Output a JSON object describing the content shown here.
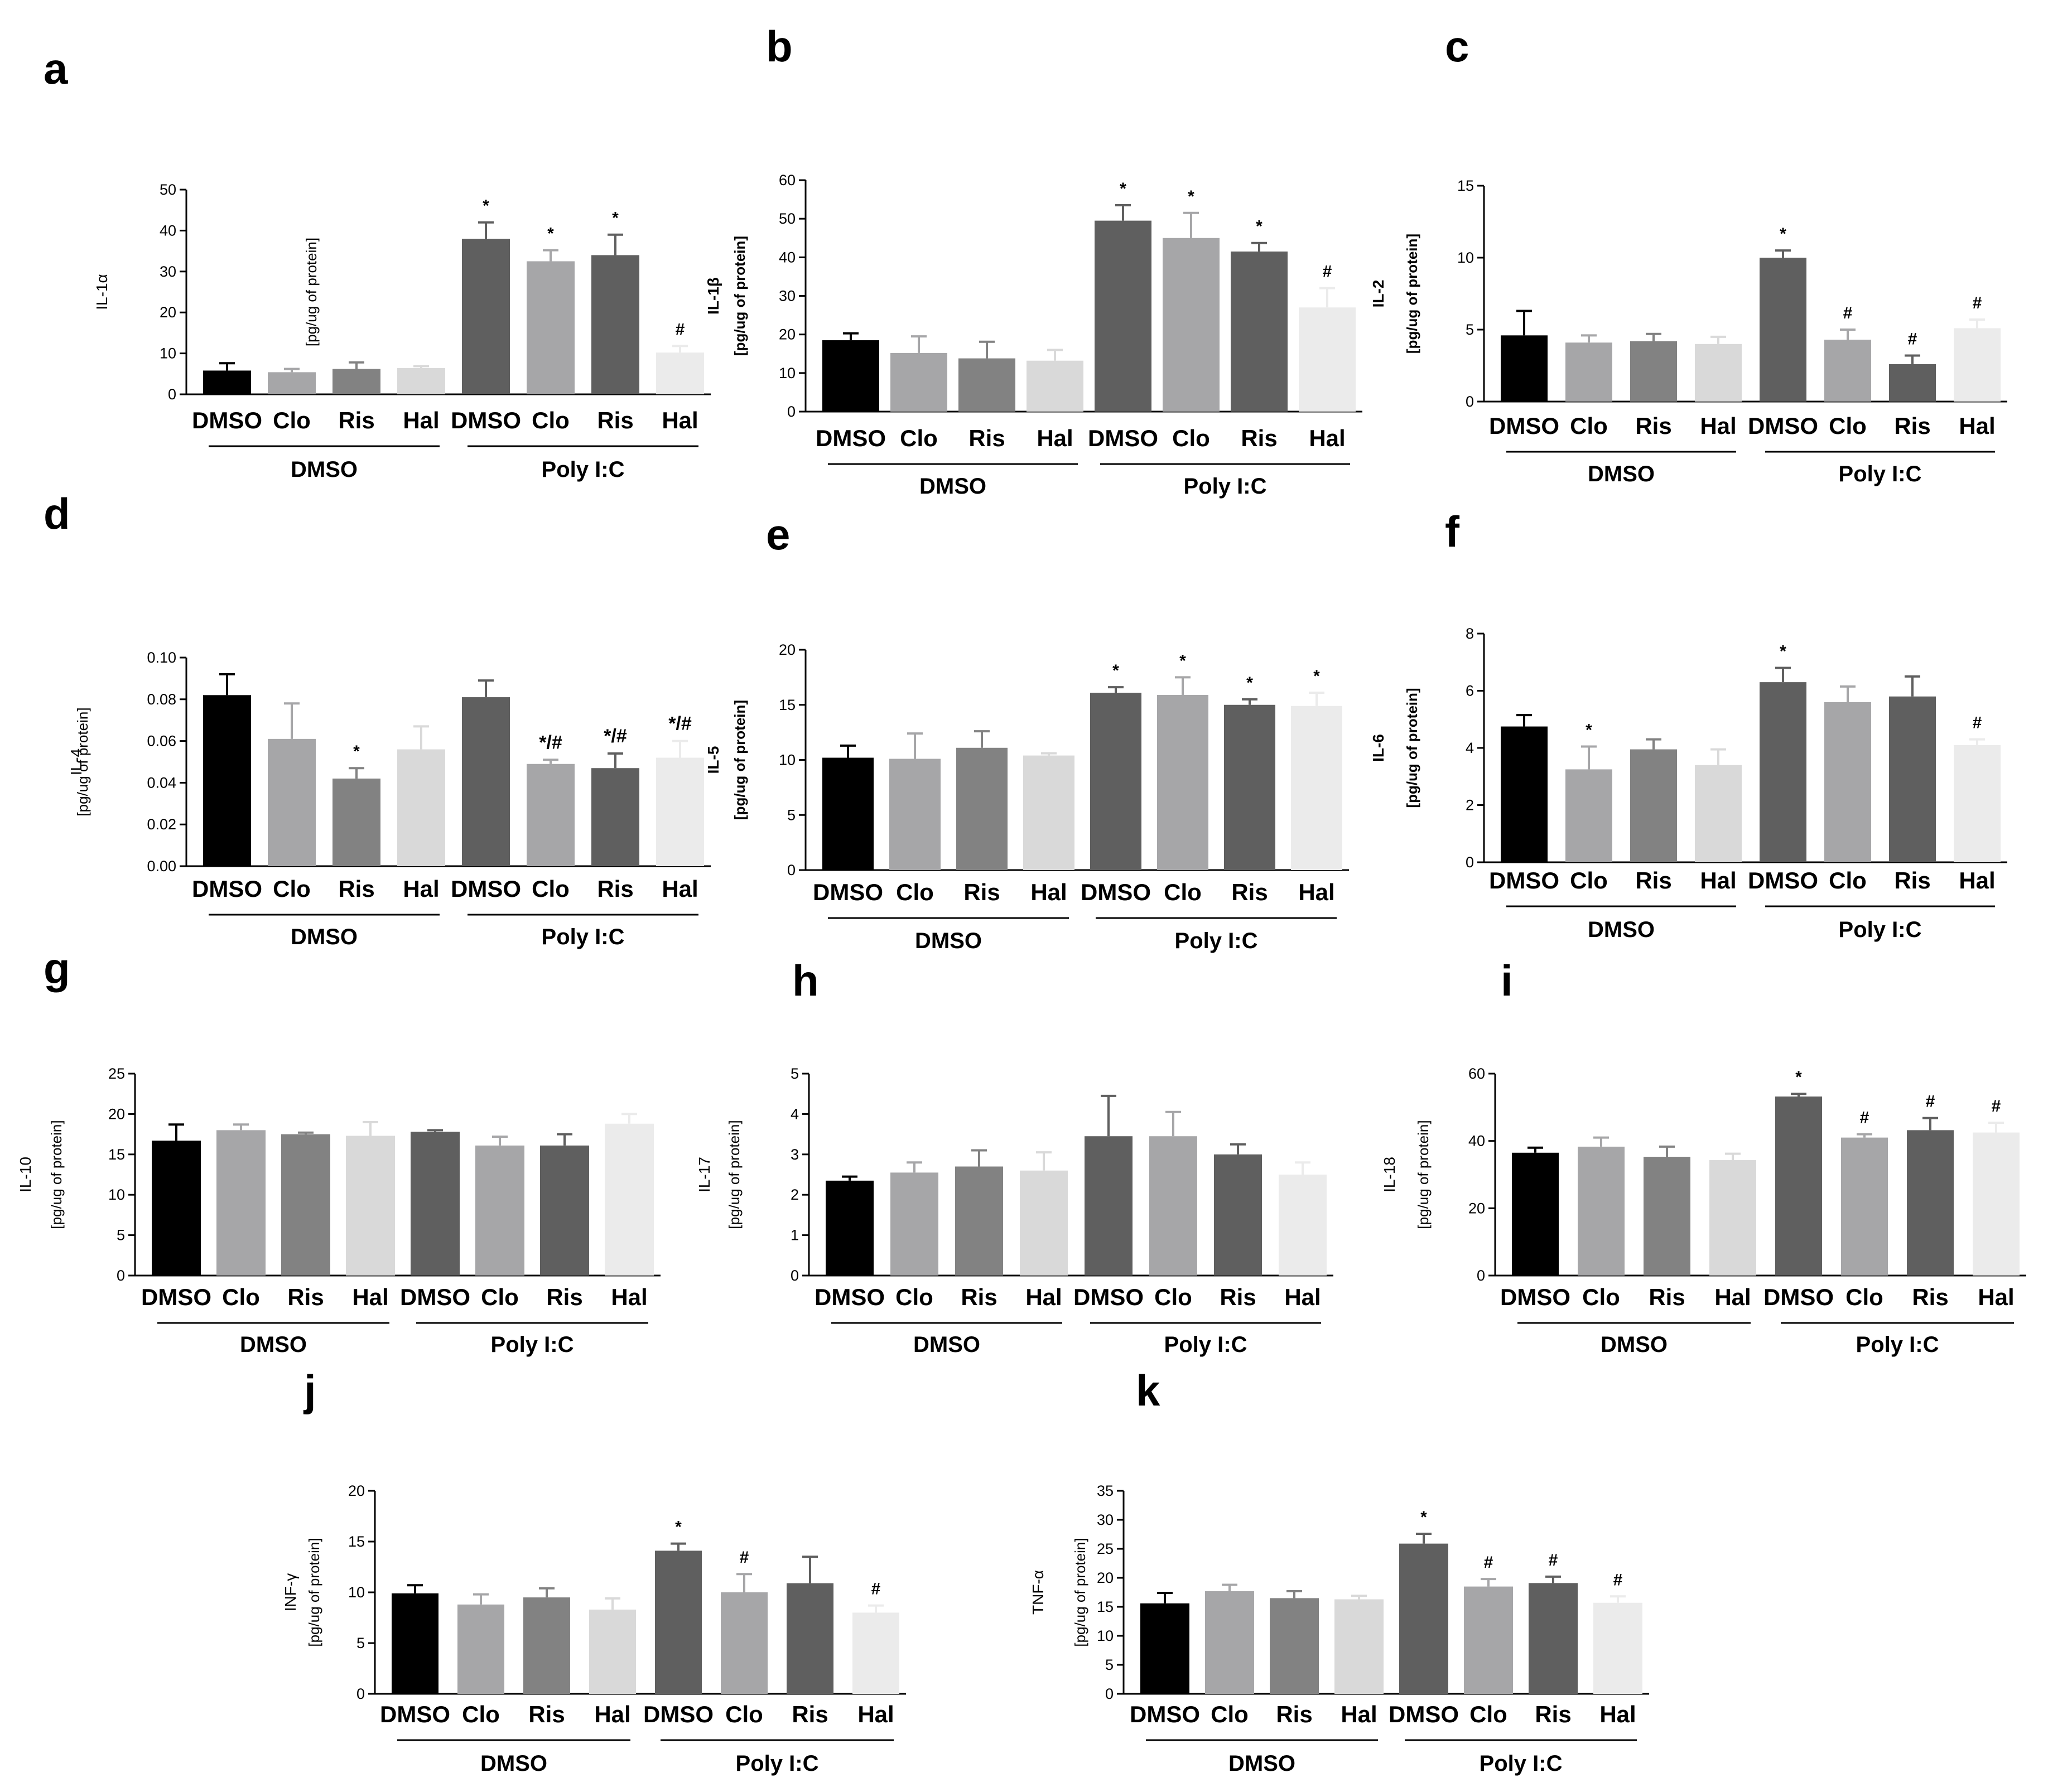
{
  "figure": {
    "group_labels": [
      "DMSO",
      "Poly I:C"
    ],
    "colors": {
      "black": "#000000",
      "mid_gray": "#a6a6a8",
      "gray": "#828282",
      "light_gray": "#d9d9d9",
      "dark_gray": "#5f5f5f",
      "very_light_gray": "#ebebeb"
    }
  },
  "chart_data": [
    {
      "panel": "a",
      "type": "bar",
      "ylabel": [
        "IL-1α",
        "[pg/ug of protein]"
      ],
      "ylabel_bold": false,
      "categories": [
        "DMSO",
        "Clo",
        "Ris",
        "Hal",
        "DMSO",
        "Clo",
        "Ris",
        "Hal"
      ],
      "groups": [
        "DMSO",
        "Poly I:C"
      ],
      "values": [
        5.8,
        5.4,
        6.2,
        6.4,
        38,
        32.5,
        34,
        10.2
      ],
      "errors": [
        1.8,
        0.8,
        1.6,
        0.5,
        4,
        2.7,
        5,
        1.6
      ],
      "annotations": [
        "",
        "",
        "",
        "",
        "*",
        "*",
        "*",
        "#"
      ],
      "ylim": [
        0,
        50
      ],
      "yticks": [
        "0",
        "10",
        "20",
        "30",
        "40",
        "50"
      ]
    },
    {
      "panel": "b",
      "type": "bar",
      "ylabel": [
        "IL-1β",
        "[pg/ug of protein]"
      ],
      "ylabel_bold": true,
      "categories": [
        "DMSO",
        "Clo",
        "Ris",
        "Hal",
        "DMSO",
        "Clo",
        "Ris",
        "Hal"
      ],
      "groups": [
        "DMSO",
        "Poly I:C"
      ],
      "values": [
        18.5,
        15.2,
        13.8,
        13.2,
        49.5,
        45,
        41.5,
        27
      ],
      "errors": [
        1.8,
        4.3,
        4.3,
        2.8,
        4,
        6.5,
        2.2,
        5
      ],
      "annotations": [
        "",
        "",
        "",
        "",
        "*",
        "*",
        "*",
        "#"
      ],
      "ylim": [
        0,
        60
      ],
      "yticks": [
        "0",
        "10",
        "20",
        "30",
        "40",
        "50",
        "60"
      ]
    },
    {
      "panel": "c",
      "type": "bar",
      "ylabel": [
        "IL-2",
        "[pg/ug of protein]"
      ],
      "ylabel_bold": true,
      "categories": [
        "DMSO",
        "Clo",
        "Ris",
        "Hal",
        "DMSO",
        "Clo",
        "Ris",
        "Hal"
      ],
      "groups": [
        "DMSO",
        "Poly I:C"
      ],
      "values": [
        4.6,
        4.1,
        4.2,
        4.0,
        10.0,
        4.3,
        2.6,
        5.1
      ],
      "errors": [
        1.7,
        0.5,
        0.5,
        0.5,
        0.5,
        0.7,
        0.6,
        0.6
      ],
      "annotations": [
        "",
        "",
        "",
        "",
        "*",
        "#",
        "#",
        "#"
      ],
      "ylim": [
        0,
        15
      ],
      "yticks": [
        "0",
        "5",
        "10",
        "15"
      ]
    },
    {
      "panel": "d",
      "type": "bar",
      "ylabel": [
        "IL-4",
        "[pg/ug of protein]"
      ],
      "ylabel_bold": false,
      "categories": [
        "DMSO",
        "Clo",
        "Ris",
        "Hal",
        "DMSO",
        "Clo",
        "Ris",
        "Hal"
      ],
      "groups": [
        "DMSO",
        "Poly I:C"
      ],
      "values": [
        0.082,
        0.061,
        0.042,
        0.056,
        0.081,
        0.049,
        0.047,
        0.052
      ],
      "errors": [
        0.01,
        0.017,
        0.005,
        0.011,
        0.008,
        0.002,
        0.007,
        0.008
      ],
      "annotations": [
        "",
        "",
        "*",
        "",
        "",
        "*/#",
        "*/#",
        "*/#"
      ],
      "ylim": [
        0,
        0.1
      ],
      "yticks": [
        "0.00",
        "0.02",
        "0.04",
        "0.06",
        "0.08",
        "0.10"
      ]
    },
    {
      "panel": "e",
      "type": "bar",
      "ylabel": [
        "IL-5",
        "[pg/ug of protein]"
      ],
      "ylabel_bold": true,
      "categories": [
        "DMSO",
        "Clo",
        "Ris",
        "Hal",
        "DMSO",
        "Clo",
        "Ris",
        "Hal"
      ],
      "groups": [
        "DMSO",
        "Poly I:C"
      ],
      "values": [
        10.2,
        10.1,
        11.1,
        10.4,
        16.1,
        15.9,
        15.0,
        14.9
      ],
      "errors": [
        1.1,
        2.3,
        1.5,
        0.2,
        0.5,
        1.6,
        0.5,
        1.2
      ],
      "annotations": [
        "",
        "",
        "",
        "",
        "*",
        "*",
        "*",
        "*"
      ],
      "ylim": [
        0,
        20
      ],
      "yticks": [
        "0",
        "5",
        "10",
        "15",
        "20"
      ]
    },
    {
      "panel": "f",
      "type": "bar",
      "ylabel": [
        "IL-6",
        "[pg/ug of protein]"
      ],
      "ylabel_bold": true,
      "categories": [
        "DMSO",
        "Clo",
        "Ris",
        "Hal",
        "DMSO",
        "Clo",
        "Ris",
        "Hal"
      ],
      "groups": [
        "DMSO",
        "Poly I:C"
      ],
      "values": [
        4.75,
        3.25,
        3.95,
        3.4,
        6.3,
        5.6,
        5.8,
        4.1
      ],
      "errors": [
        0.4,
        0.8,
        0.35,
        0.55,
        0.5,
        0.55,
        0.7,
        0.2
      ],
      "annotations": [
        "",
        "*",
        "",
        "",
        "*",
        "",
        "",
        "#"
      ],
      "ylim": [
        0,
        8
      ],
      "yticks": [
        "0",
        "2",
        "4",
        "6",
        "8"
      ]
    },
    {
      "panel": "g",
      "type": "bar",
      "ylabel": [
        "IL-10",
        "[pg/ug of protein]"
      ],
      "ylabel_bold": false,
      "categories": [
        "DMSO",
        "Clo",
        "Ris",
        "Hal",
        "DMSO",
        "Clo",
        "Ris",
        "Hal"
      ],
      "groups": [
        "DMSO",
        "Poly I:C"
      ],
      "values": [
        16.7,
        18,
        17.5,
        17.3,
        17.8,
        16.1,
        16.1,
        18.8
      ],
      "errors": [
        2,
        0.7,
        0.2,
        1.7,
        0.2,
        1.1,
        1.4,
        1.2
      ],
      "annotations": [
        "",
        "",
        "",
        "",
        "",
        "",
        "",
        ""
      ],
      "ylim": [
        0,
        25
      ],
      "yticks": [
        "0",
        "5",
        "10",
        "15",
        "20",
        "25"
      ]
    },
    {
      "panel": "h",
      "type": "bar",
      "ylabel": [
        "IL-17",
        "[pg/ug of protein]"
      ],
      "ylabel_bold": false,
      "categories": [
        "DMSO",
        "Clo",
        "Ris",
        "Hal",
        "DMSO",
        "Clo",
        "Ris",
        "Hal"
      ],
      "groups": [
        "DMSO",
        "Poly I:C"
      ],
      "values": [
        2.35,
        2.55,
        2.7,
        2.6,
        3.45,
        3.45,
        3.0,
        2.5
      ],
      "errors": [
        0.1,
        0.25,
        0.4,
        0.45,
        1.0,
        0.6,
        0.25,
        0.3
      ],
      "annotations": [
        "",
        "",
        "",
        "",
        "",
        "",
        "",
        ""
      ],
      "ylim": [
        0,
        5
      ],
      "yticks": [
        "0",
        "1",
        "2",
        "3",
        "4",
        "5"
      ]
    },
    {
      "panel": "i",
      "type": "bar",
      "ylabel": [
        "IL-18",
        "[pg/ug of protein]"
      ],
      "ylabel_bold": false,
      "categories": [
        "DMSO",
        "Clo",
        "Ris",
        "Hal",
        "DMSO",
        "Clo",
        "Ris",
        "Hal"
      ],
      "groups": [
        "DMSO",
        "Poly I:C"
      ],
      "values": [
        36.5,
        38.3,
        35.3,
        34.3,
        53.2,
        41,
        43.2,
        42.5
      ],
      "errors": [
        1.5,
        2.7,
        3,
        1.9,
        0.8,
        1,
        3.6,
        2.9
      ],
      "annotations": [
        "",
        "",
        "",
        "",
        "*",
        "#",
        "#",
        "#"
      ],
      "ylim": [
        0,
        60
      ],
      "yticks": [
        "0",
        "20",
        "40",
        "60"
      ]
    },
    {
      "panel": "j",
      "type": "bar",
      "ylabel": [
        "INF-γ",
        "[pg/ug of protein]"
      ],
      "ylabel_bold": false,
      "categories": [
        "DMSO",
        "Clo",
        "Ris",
        "Hal",
        "DMSO",
        "Clo",
        "Ris",
        "Hal"
      ],
      "groups": [
        "DMSO",
        "Poly I:C"
      ],
      "values": [
        9.9,
        8.8,
        9.5,
        8.3,
        14.1,
        10,
        10.9,
        8
      ],
      "errors": [
        0.8,
        1,
        0.9,
        1.1,
        0.7,
        1.8,
        2.6,
        0.7
      ],
      "annotations": [
        "",
        "",
        "",
        "",
        "*",
        "#",
        "",
        "#"
      ],
      "ylim": [
        0,
        20
      ],
      "yticks": [
        "0",
        "5",
        "10",
        "15",
        "20"
      ]
    },
    {
      "panel": "k",
      "type": "bar",
      "ylabel": [
        "TNF-α",
        "[pg/ug of protein]"
      ],
      "ylabel_bold": false,
      "categories": [
        "DMSO",
        "Clo",
        "Ris",
        "Hal",
        "DMSO",
        "Clo",
        "Ris",
        "Hal"
      ],
      "groups": [
        "DMSO",
        "Poly I:C"
      ],
      "values": [
        15.6,
        17.7,
        16.5,
        16.3,
        25.9,
        18.5,
        19.1,
        15.7
      ],
      "errors": [
        1.8,
        1.1,
        1.2,
        0.6,
        1.7,
        1.3,
        1.1,
        1.1
      ],
      "annotations": [
        "",
        "",
        "",
        "",
        "*",
        "#",
        "#",
        "#"
      ],
      "ylim": [
        0,
        35
      ],
      "yticks": [
        "0",
        "5",
        "10",
        "15",
        "20",
        "25",
        "30",
        "35"
      ]
    }
  ]
}
